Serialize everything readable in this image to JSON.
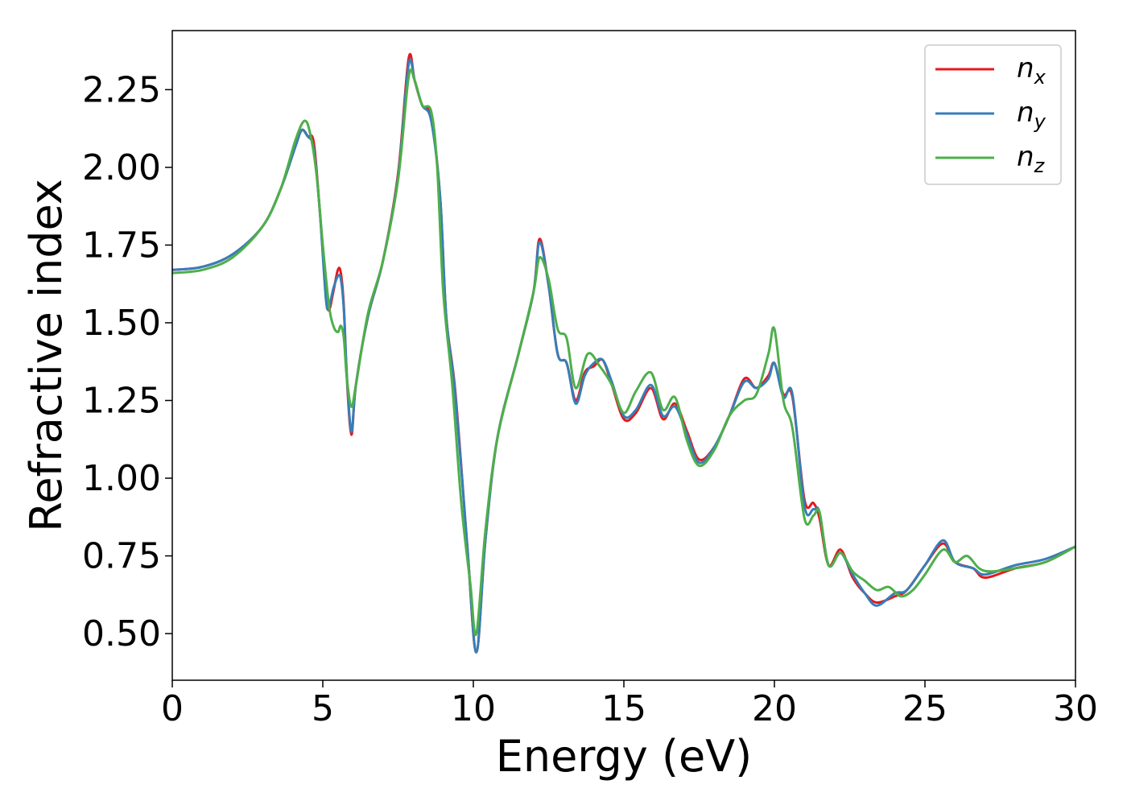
{
  "chart_data": {
    "type": "line",
    "xlabel": "Energy (eV)",
    "ylabel": "Refractive index",
    "xlim": [
      0,
      30
    ],
    "ylim": [
      0.35,
      2.44
    ],
    "x_ticks": [
      0,
      5,
      10,
      15,
      20,
      25,
      30
    ],
    "y_ticks": [
      0.5,
      0.75,
      1.0,
      1.25,
      1.5,
      1.75,
      2.0,
      2.25
    ],
    "x_tick_labels": [
      "0",
      "5",
      "10",
      "15",
      "20",
      "25",
      "30"
    ],
    "y_tick_labels": [
      "0.50",
      "0.75",
      "1.00",
      "1.25",
      "1.50",
      "1.75",
      "2.00",
      "2.25"
    ],
    "grid": false,
    "legend_position": "top-right",
    "series": [
      {
        "name": "n_x",
        "legend_base": "n",
        "legend_sub": "x",
        "color": "#e41a1c",
        "points": [
          [
            0,
            1.67
          ],
          [
            1,
            1.68
          ],
          [
            2,
            1.72
          ],
          [
            3,
            1.81
          ],
          [
            3.6,
            1.93
          ],
          [
            4.1,
            2.07
          ],
          [
            4.3,
            2.12
          ],
          [
            4.5,
            2.1
          ],
          [
            4.7,
            2.08
          ],
          [
            4.9,
            1.86
          ],
          [
            5.1,
            1.6
          ],
          [
            5.2,
            1.54
          ],
          [
            5.35,
            1.6
          ],
          [
            5.5,
            1.67
          ],
          [
            5.6,
            1.66
          ],
          [
            5.7,
            1.55
          ],
          [
            5.8,
            1.32
          ],
          [
            5.95,
            1.14
          ],
          [
            6.1,
            1.3
          ],
          [
            6.5,
            1.52
          ],
          [
            7,
            1.7
          ],
          [
            7.5,
            1.98
          ],
          [
            7.85,
            2.35
          ],
          [
            8.05,
            2.28
          ],
          [
            8.3,
            2.2
          ],
          [
            8.6,
            2.16
          ],
          [
            8.9,
            1.9
          ],
          [
            9.1,
            1.52
          ],
          [
            9.4,
            1.28
          ],
          [
            9.8,
            0.78
          ],
          [
            10.1,
            0.44
          ],
          [
            10.4,
            0.8
          ],
          [
            10.8,
            1.13
          ],
          [
            11.5,
            1.4
          ],
          [
            12,
            1.6
          ],
          [
            12.2,
            1.77
          ],
          [
            12.5,
            1.62
          ],
          [
            12.8,
            1.4
          ],
          [
            13.1,
            1.37
          ],
          [
            13.4,
            1.25
          ],
          [
            13.7,
            1.34
          ],
          [
            14,
            1.36
          ],
          [
            14.3,
            1.38
          ],
          [
            14.6,
            1.3
          ],
          [
            15,
            1.19
          ],
          [
            15.4,
            1.21
          ],
          [
            15.9,
            1.29
          ],
          [
            16.3,
            1.19
          ],
          [
            16.7,
            1.24
          ],
          [
            17.1,
            1.15
          ],
          [
            17.5,
            1.06
          ],
          [
            18,
            1.1
          ],
          [
            18.5,
            1.2
          ],
          [
            19,
            1.32
          ],
          [
            19.4,
            1.29
          ],
          [
            19.8,
            1.33
          ],
          [
            20,
            1.37
          ],
          [
            20.3,
            1.27
          ],
          [
            20.6,
            1.26
          ],
          [
            21,
            0.93
          ],
          [
            21.3,
            0.92
          ],
          [
            21.5,
            0.87
          ],
          [
            21.8,
            0.72
          ],
          [
            22.2,
            0.77
          ],
          [
            22.6,
            0.68
          ],
          [
            23,
            0.63
          ],
          [
            23.4,
            0.6
          ],
          [
            24,
            0.62
          ],
          [
            24.4,
            0.64
          ],
          [
            25,
            0.72
          ],
          [
            25.6,
            0.79
          ],
          [
            26,
            0.73
          ],
          [
            26.6,
            0.71
          ],
          [
            27,
            0.68
          ],
          [
            28,
            0.71
          ],
          [
            29,
            0.73
          ],
          [
            30,
            0.78
          ]
        ]
      },
      {
        "name": "n_y",
        "legend_base": "n",
        "legend_sub": "y",
        "color": "#377eb8",
        "points": [
          [
            0,
            1.67
          ],
          [
            1,
            1.68
          ],
          [
            2,
            1.72
          ],
          [
            3,
            1.81
          ],
          [
            3.6,
            1.93
          ],
          [
            4.1,
            2.07
          ],
          [
            4.3,
            2.12
          ],
          [
            4.5,
            2.1
          ],
          [
            4.7,
            2.06
          ],
          [
            4.9,
            1.86
          ],
          [
            5.1,
            1.58
          ],
          [
            5.2,
            1.55
          ],
          [
            5.35,
            1.61
          ],
          [
            5.5,
            1.65
          ],
          [
            5.6,
            1.64
          ],
          [
            5.7,
            1.54
          ],
          [
            5.8,
            1.33
          ],
          [
            5.95,
            1.15
          ],
          [
            6.1,
            1.3
          ],
          [
            6.5,
            1.52
          ],
          [
            7,
            1.7
          ],
          [
            7.5,
            1.97
          ],
          [
            7.85,
            2.33
          ],
          [
            8.05,
            2.28
          ],
          [
            8.3,
            2.2
          ],
          [
            8.6,
            2.15
          ],
          [
            8.9,
            1.9
          ],
          [
            9.1,
            1.52
          ],
          [
            9.4,
            1.27
          ],
          [
            9.8,
            0.78
          ],
          [
            10.1,
            0.44
          ],
          [
            10.4,
            0.8
          ],
          [
            10.8,
            1.13
          ],
          [
            11.5,
            1.4
          ],
          [
            12,
            1.6
          ],
          [
            12.2,
            1.76
          ],
          [
            12.5,
            1.62
          ],
          [
            12.8,
            1.4
          ],
          [
            13.1,
            1.37
          ],
          [
            13.4,
            1.24
          ],
          [
            13.7,
            1.33
          ],
          [
            14,
            1.37
          ],
          [
            14.3,
            1.38
          ],
          [
            14.6,
            1.31
          ],
          [
            15,
            1.2
          ],
          [
            15.4,
            1.22
          ],
          [
            15.9,
            1.3
          ],
          [
            16.3,
            1.2
          ],
          [
            16.7,
            1.23
          ],
          [
            17.1,
            1.14
          ],
          [
            17.5,
            1.05
          ],
          [
            18,
            1.1
          ],
          [
            18.5,
            1.2
          ],
          [
            19,
            1.31
          ],
          [
            19.4,
            1.29
          ],
          [
            19.8,
            1.32
          ],
          [
            20,
            1.37
          ],
          [
            20.3,
            1.26
          ],
          [
            20.6,
            1.27
          ],
          [
            21,
            0.91
          ],
          [
            21.3,
            0.9
          ],
          [
            21.5,
            0.89
          ],
          [
            21.8,
            0.72
          ],
          [
            22.2,
            0.76
          ],
          [
            22.6,
            0.69
          ],
          [
            23,
            0.63
          ],
          [
            23.4,
            0.59
          ],
          [
            24,
            0.63
          ],
          [
            24.4,
            0.64
          ],
          [
            25,
            0.72
          ],
          [
            25.6,
            0.8
          ],
          [
            26,
            0.73
          ],
          [
            26.6,
            0.71
          ],
          [
            27,
            0.69
          ],
          [
            28,
            0.72
          ],
          [
            29,
            0.74
          ],
          [
            30,
            0.78
          ]
        ]
      },
      {
        "name": "n_z",
        "legend_base": "n",
        "legend_sub": "z",
        "color": "#4daf4a",
        "points": [
          [
            0,
            1.66
          ],
          [
            1,
            1.67
          ],
          [
            2,
            1.71
          ],
          [
            3,
            1.81
          ],
          [
            3.6,
            1.93
          ],
          [
            4.1,
            2.09
          ],
          [
            4.4,
            2.15
          ],
          [
            4.6,
            2.1
          ],
          [
            4.8,
            1.97
          ],
          [
            5.0,
            1.75
          ],
          [
            5.2,
            1.56
          ],
          [
            5.35,
            1.49
          ],
          [
            5.5,
            1.47
          ],
          [
            5.6,
            1.49
          ],
          [
            5.7,
            1.45
          ],
          [
            5.8,
            1.32
          ],
          [
            5.95,
            1.23
          ],
          [
            6.1,
            1.3
          ],
          [
            6.5,
            1.53
          ],
          [
            7,
            1.7
          ],
          [
            7.5,
            1.96
          ],
          [
            7.85,
            2.29
          ],
          [
            8.05,
            2.28
          ],
          [
            8.3,
            2.2
          ],
          [
            8.6,
            2.18
          ],
          [
            8.8,
            2.0
          ],
          [
            9.0,
            1.6
          ],
          [
            9.3,
            1.3
          ],
          [
            9.6,
            0.92
          ],
          [
            9.9,
            0.66
          ],
          [
            10.1,
            0.5
          ],
          [
            10.4,
            0.83
          ],
          [
            10.8,
            1.13
          ],
          [
            11.5,
            1.4
          ],
          [
            12,
            1.6
          ],
          [
            12.2,
            1.71
          ],
          [
            12.5,
            1.64
          ],
          [
            12.8,
            1.48
          ],
          [
            13.1,
            1.45
          ],
          [
            13.4,
            1.29
          ],
          [
            13.8,
            1.4
          ],
          [
            14.2,
            1.36
          ],
          [
            14.6,
            1.3
          ],
          [
            15,
            1.21
          ],
          [
            15.4,
            1.28
          ],
          [
            15.9,
            1.34
          ],
          [
            16.3,
            1.22
          ],
          [
            16.7,
            1.26
          ],
          [
            17.1,
            1.12
          ],
          [
            17.5,
            1.04
          ],
          [
            18,
            1.09
          ],
          [
            18.5,
            1.2
          ],
          [
            19,
            1.25
          ],
          [
            19.4,
            1.27
          ],
          [
            19.8,
            1.4
          ],
          [
            20,
            1.48
          ],
          [
            20.3,
            1.25
          ],
          [
            20.6,
            1.16
          ],
          [
            21,
            0.87
          ],
          [
            21.3,
            0.88
          ],
          [
            21.5,
            0.89
          ],
          [
            21.8,
            0.72
          ],
          [
            22.2,
            0.76
          ],
          [
            22.6,
            0.7
          ],
          [
            23,
            0.67
          ],
          [
            23.4,
            0.64
          ],
          [
            23.8,
            0.65
          ],
          [
            24.2,
            0.62
          ],
          [
            24.6,
            0.64
          ],
          [
            25,
            0.69
          ],
          [
            25.6,
            0.77
          ],
          [
            26,
            0.73
          ],
          [
            26.4,
            0.75
          ],
          [
            26.8,
            0.71
          ],
          [
            27.2,
            0.7
          ],
          [
            28,
            0.71
          ],
          [
            29,
            0.73
          ],
          [
            30,
            0.78
          ]
        ]
      }
    ]
  }
}
